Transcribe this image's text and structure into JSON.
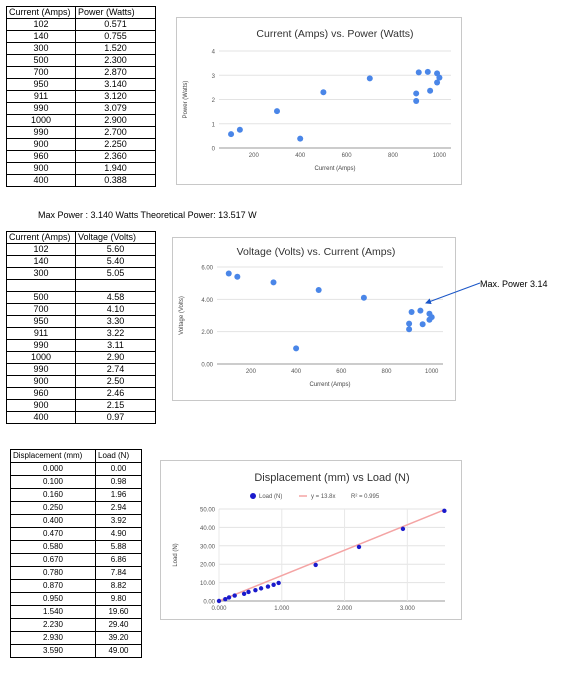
{
  "table_power": {
    "headers": [
      "Current (Amps)",
      "Power (Watts)"
    ],
    "rows": [
      [
        "102",
        "0.571"
      ],
      [
        "140",
        "0.755"
      ],
      [
        "300",
        "1.520"
      ],
      [
        "500",
        "2.300"
      ],
      [
        "700",
        "2.870"
      ],
      [
        "950",
        "3.140"
      ],
      [
        "911",
        "3.120"
      ],
      [
        "990",
        "3.079"
      ],
      [
        "1000",
        "2.900"
      ],
      [
        "990",
        "2.700"
      ],
      [
        "900",
        "2.250"
      ],
      [
        "960",
        "2.360"
      ],
      [
        "900",
        "1.940"
      ],
      [
        "400",
        "0.388"
      ]
    ]
  },
  "summary_text": "Max Power : 3.140 Watts Theoretical Power: 13.517 W",
  "table_voltage": {
    "headers": [
      "Current (Amps)",
      "Voltage (Volts)"
    ],
    "rows": [
      [
        "102",
        "5.60"
      ],
      [
        "140",
        "5.40"
      ],
      [
        "300",
        "5.05"
      ],
      [
        "",
        ""
      ],
      [
        "500",
        "4.58"
      ],
      [
        "700",
        "4.10"
      ],
      [
        "950",
        "3.30"
      ],
      [
        "911",
        "3.22"
      ],
      [
        "990",
        "3.11"
      ],
      [
        "1000",
        "2.90"
      ],
      [
        "990",
        "2.74"
      ],
      [
        "900",
        "2.50"
      ],
      [
        "960",
        "2.46"
      ],
      [
        "900",
        "2.15"
      ],
      [
        "400",
        "0.97"
      ]
    ]
  },
  "table_load": {
    "headers": [
      "Displacement (mm)",
      "Load (N)"
    ],
    "rows": [
      [
        "0.000",
        "0.00"
      ],
      [
        "0.100",
        "0.98"
      ],
      [
        "0.160",
        "1.96"
      ],
      [
        "0.250",
        "2.94"
      ],
      [
        "0.400",
        "3.92"
      ],
      [
        "0.470",
        "4.90"
      ],
      [
        "0.580",
        "5.88"
      ],
      [
        "0.670",
        "6.86"
      ],
      [
        "0.780",
        "7.84"
      ],
      [
        "0.870",
        "8.82"
      ],
      [
        "0.950",
        "9.80"
      ],
      [
        "1.540",
        "19.60"
      ],
      [
        "2.230",
        "29.40"
      ],
      [
        "2.930",
        "39.20"
      ],
      [
        "3.590",
        "49.00"
      ]
    ]
  },
  "callout_text": "Max. Power 3.14",
  "chart_data": [
    {
      "type": "scatter",
      "title": "Current (Amps) vs. Power (Watts)",
      "xlabel": "Current (Amps)",
      "ylabel": "Power (Watts)",
      "xlim": [
        50,
        1050
      ],
      "ylim": [
        0,
        4
      ],
      "xticks": [
        200,
        400,
        600,
        800,
        1000
      ],
      "yticks": [
        0,
        1,
        2,
        3,
        4
      ],
      "ytick_labels": [
        "0",
        "1",
        "2",
        "3",
        "4"
      ],
      "grid": true,
      "color": "#4a86e8",
      "x": [
        102,
        140,
        300,
        500,
        700,
        950,
        911,
        990,
        1000,
        990,
        900,
        960,
        900,
        400
      ],
      "y": [
        0.571,
        0.755,
        1.52,
        2.3,
        2.87,
        3.14,
        3.12,
        3.079,
        2.9,
        2.7,
        2.25,
        2.36,
        1.94,
        0.388
      ]
    },
    {
      "type": "scatter",
      "title": "Voltage (Volts) vs. Current (Amps)",
      "xlabel": "Current (Amps)",
      "ylabel": "Voltage (Volts)",
      "xlim": [
        50,
        1050
      ],
      "ylim": [
        0,
        6
      ],
      "xticks": [
        200,
        400,
        600,
        800,
        1000
      ],
      "yticks": [
        0,
        2,
        4,
        6
      ],
      "ytick_labels": [
        "0.00",
        "2.00",
        "4.00",
        "6.00"
      ],
      "grid": true,
      "color": "#4a86e8",
      "x": [
        102,
        140,
        300,
        500,
        700,
        950,
        911,
        990,
        1000,
        990,
        900,
        960,
        900,
        400
      ],
      "y": [
        5.6,
        5.4,
        5.05,
        4.58,
        4.1,
        3.3,
        3.22,
        3.11,
        2.9,
        2.74,
        2.5,
        2.46,
        2.15,
        0.97
      ]
    },
    {
      "type": "scatter",
      "title": "Displacement (mm) vs Load (N)",
      "xlabel": "Displacement (mm)",
      "ylabel": "Load (N)",
      "xlim": [
        0,
        3.6
      ],
      "ylim": [
        0,
        50
      ],
      "xticks": [
        0,
        1,
        2,
        3
      ],
      "xtick_labels": [
        "0.000",
        "1.000",
        "2.000",
        "3.000"
      ],
      "yticks": [
        0,
        10,
        20,
        30,
        40,
        50
      ],
      "ytick_labels": [
        "0.00",
        "10.00",
        "20.00",
        "30.00",
        "40.00",
        "50.00"
      ],
      "grid": true,
      "legend_position": "top",
      "series_name": "Load (N)",
      "trendline_label": "y = 13.8x",
      "r2_label": "R² = 0.995",
      "trend_slope": 13.8,
      "color": "#1a1acc",
      "trend_color": "#f4a4a4",
      "x": [
        0,
        0.1,
        0.16,
        0.25,
        0.4,
        0.47,
        0.58,
        0.67,
        0.78,
        0.87,
        0.95,
        1.54,
        2.23,
        2.93,
        3.59
      ],
      "y": [
        0,
        0.98,
        1.96,
        2.94,
        3.92,
        4.9,
        5.88,
        6.86,
        7.84,
        8.82,
        9.8,
        19.6,
        29.4,
        39.2,
        49.0
      ]
    }
  ]
}
